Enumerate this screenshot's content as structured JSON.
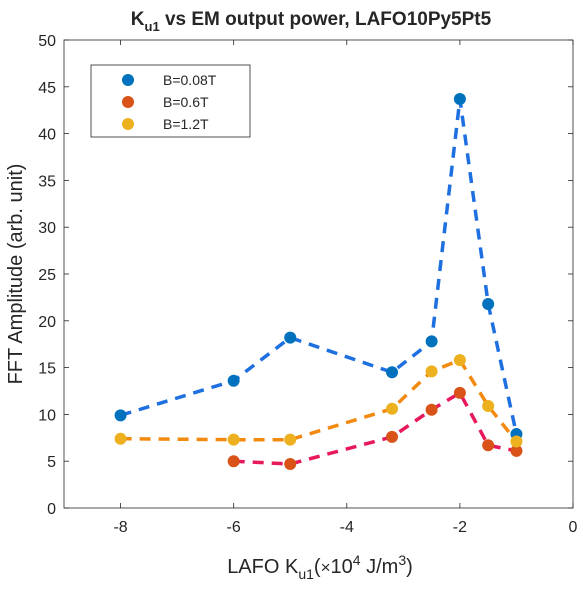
{
  "chart_data": {
    "type": "line",
    "title": "K",
    "title_sub": "u1",
    "title_rest": " vs EM output power, LAFO10Py5Pt5",
    "xlabel": {
      "prefix": "LAFO K",
      "sub": "u1",
      "mid": "(",
      "times": "×",
      "ten": "10",
      "exp": "4",
      "unit": " J/m",
      "unit_exp": "3",
      "suffix": ")"
    },
    "ylabel": "FFT Amplitude (arb. unit)",
    "xlim": [
      -9,
      0
    ],
    "ylim": [
      0,
      50
    ],
    "xticks": [
      -8,
      -6,
      -4,
      -2,
      0
    ],
    "xtick_labels": [
      "-8",
      "-6",
      "-4",
      "-2",
      "0"
    ],
    "yticks": [
      0,
      5,
      10,
      15,
      20,
      25,
      30,
      35,
      40,
      45,
      50
    ],
    "ytick_labels": [
      "0",
      "5",
      "10",
      "15",
      "20",
      "25",
      "30",
      "35",
      "40",
      "45",
      "50"
    ],
    "legend_position": "top-left",
    "series": [
      {
        "name": "B=0.08T",
        "marker_color": "#0072BD",
        "line_color": "#1E6FE0",
        "x": [
          -8,
          -6,
          -5,
          -3.2,
          -2.5,
          -2,
          -1.5,
          -1
        ],
        "y": [
          9.9,
          13.6,
          18.2,
          14.5,
          17.8,
          43.7,
          21.8,
          7.9
        ]
      },
      {
        "name": "B=0.6T",
        "marker_color": "#D95319",
        "line_color": "#E8195A",
        "x": [
          -6,
          -5,
          -3.2,
          -2.5,
          -2,
          -1.5,
          -1
        ],
        "y": [
          5.0,
          4.7,
          7.6,
          10.5,
          12.3,
          6.7,
          6.1
        ]
      },
      {
        "name": "B=1.2T",
        "marker_color": "#EDB120",
        "line_color": "#F28A10",
        "x": [
          -8,
          -6,
          -5,
          -3.2,
          -2.5,
          -2,
          -1.5,
          -1
        ],
        "y": [
          7.4,
          7.3,
          7.3,
          10.6,
          14.6,
          15.8,
          10.9,
          7.1
        ]
      }
    ]
  }
}
